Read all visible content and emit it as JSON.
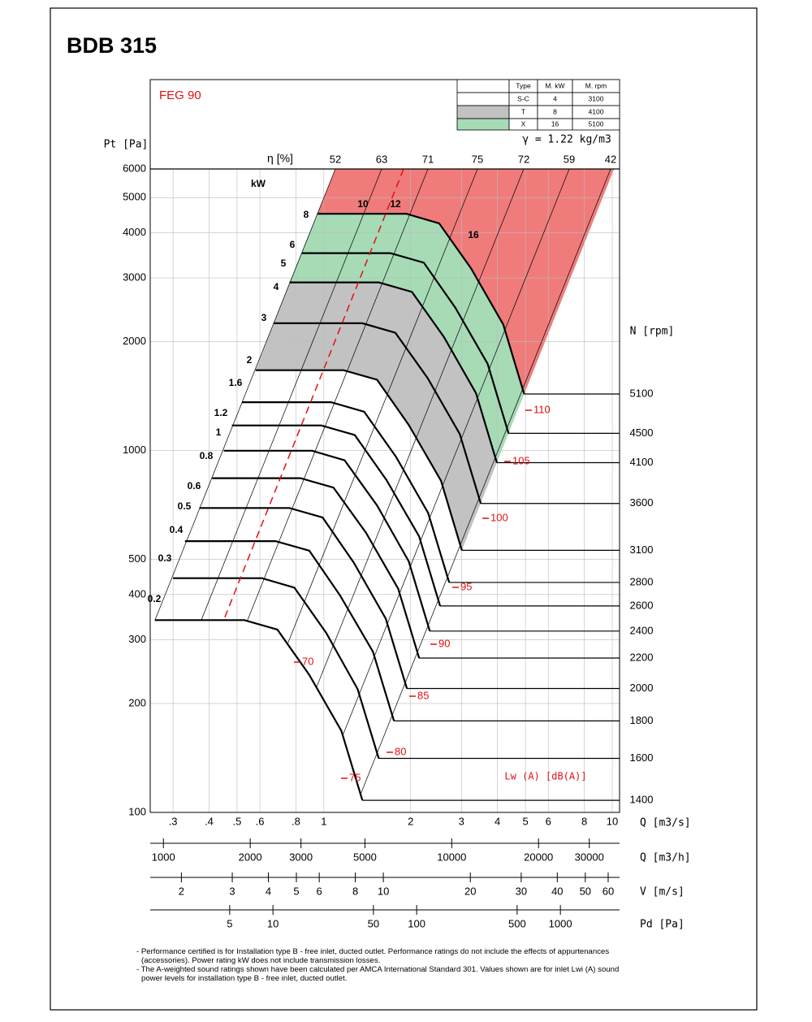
{
  "chart_data": {
    "type": "fan-curve",
    "title": "BDB 315",
    "subtitle": "FEG 90",
    "density": "γ = 1.22 kg/m3",
    "y_label": "Pt [Pa]",
    "log_y": true,
    "ylim": [
      100,
      6000
    ],
    "yticks": [
      100,
      200,
      300,
      400,
      500,
      1000,
      2000,
      3000,
      4000,
      5000,
      6000
    ],
    "x_label": "Q [m3/s]",
    "log_x": true,
    "xlim": [
      0.25,
      10.6
    ],
    "xticks": [
      {
        "value": 0.3,
        "label": ".3"
      },
      {
        "value": 0.4,
        "label": ".4"
      },
      {
        "value": 0.5,
        "label": ".5"
      },
      {
        "value": 0.6,
        "label": ".6"
      },
      {
        "value": 0.8,
        "label": ".8"
      },
      1,
      2,
      3,
      4,
      5,
      6,
      8,
      10
    ],
    "grid": true,
    "secondary_x_axes": [
      {
        "label": "Q [m3/h]",
        "xlim": [
          900,
          38200
        ],
        "xticks": [
          1000,
          2000,
          3000,
          5000,
          10000,
          20000,
          30000
        ]
      },
      {
        "label": "V [m/s]",
        "xlim": [
          1.56,
          65.7
        ],
        "xticks": [
          2,
          3,
          4,
          5,
          6,
          8,
          10,
          20,
          30,
          40,
          50,
          60
        ]
      },
      {
        "label": "Pd [Pa]",
        "xlim": [
          1.4,
          2580
        ],
        "xticks": [
          5,
          10,
          50,
          100,
          500,
          1000
        ]
      }
    ],
    "rpm_label": "N [rpm]",
    "series": [
      {
        "name": "1400",
        "color": "#000000",
        "x": [
          0.26,
          0.53,
          0.69,
          0.89,
          1.15,
          1.36
        ],
        "values": [
          340,
          340,
          320,
          240,
          168,
          108
        ]
      },
      {
        "name": "1600",
        "color": "#000000",
        "x": [
          0.3,
          0.61,
          0.79,
          1.02,
          1.31,
          1.55
        ],
        "values": [
          444,
          444,
          418,
          313,
          219,
          141
        ]
      },
      {
        "name": "1800",
        "color": "#000000",
        "x": [
          0.33,
          0.68,
          0.89,
          1.14,
          1.48,
          1.75
        ],
        "values": [
          562,
          562,
          529,
          397,
          278,
          179
        ]
      },
      {
        "name": "2000",
        "color": "#000000",
        "x": [
          0.37,
          0.76,
          0.99,
          1.27,
          1.64,
          1.94
        ],
        "values": [
          694,
          694,
          653,
          490,
          343,
          220
        ]
      },
      {
        "name": "2200",
        "color": "#000000",
        "x": [
          0.41,
          0.83,
          1.08,
          1.4,
          1.81,
          2.14
        ],
        "values": [
          839,
          839,
          790,
          593,
          415,
          267
        ]
      },
      {
        "name": "2400",
        "color": "#000000",
        "x": [
          0.45,
          0.91,
          1.18,
          1.53,
          1.97,
          2.33
        ],
        "values": [
          999,
          999,
          940,
          705,
          494,
          317
        ]
      },
      {
        "name": "2600",
        "color": "#000000",
        "x": [
          0.48,
          0.98,
          1.28,
          1.65,
          2.14,
          2.53
        ],
        "values": [
          1173,
          1173,
          1104,
          828,
          579,
          372
        ]
      },
      {
        "name": "2800",
        "color": "#000000",
        "x": [
          0.52,
          1.06,
          1.38,
          1.78,
          2.3,
          2.72
        ],
        "values": [
          1360,
          1360,
          1280,
          960,
          672,
          432
        ]
      },
      {
        "name": "3100",
        "color": "#000000",
        "x": [
          0.58,
          1.17,
          1.53,
          1.97,
          2.55,
          3.01
        ],
        "values": [
          1667,
          1667,
          1569,
          1177,
          824,
          530
        ]
      },
      {
        "name": "3600",
        "color": "#000000",
        "x": [
          0.67,
          1.36,
          1.77,
          2.29,
          2.96,
          3.5
        ],
        "values": [
          2248,
          2248,
          2116,
          1587,
          1111,
          714
        ]
      },
      {
        "name": "4100",
        "color": "#000000",
        "x": [
          0.76,
          1.55,
          2.02,
          2.61,
          3.37,
          3.98
        ],
        "values": [
          2916,
          2916,
          2745,
          2058,
          1441,
          926
        ]
      },
      {
        "name": "4500",
        "color": "#000000",
        "x": [
          0.84,
          1.7,
          2.22,
          2.86,
          3.7,
          4.37
        ],
        "values": [
          3512,
          3512,
          3306,
          2479,
          1735,
          1116
        ]
      },
      {
        "name": "5100",
        "color": "#000000",
        "x": [
          0.95,
          1.93,
          2.51,
          3.24,
          4.19,
          4.95
        ],
        "values": [
          4512,
          4512,
          4246,
          3185,
          2229,
          1433
        ]
      }
    ],
    "efficiency_label": "η [%]",
    "efficiency": [
      52,
      63,
      71,
      75,
      72,
      59,
      42
    ],
    "power_label": "kW",
    "power": [
      0.2,
      0.3,
      0.4,
      0.5,
      0.6,
      0.8,
      1,
      1.2,
      1.6,
      2,
      3,
      4,
      5,
      6,
      8,
      10,
      12,
      16
    ],
    "sound_label": "Lw (A)  [dB(A)]",
    "sound": [
      70,
      75,
      80,
      85,
      90,
      95,
      100,
      105,
      110
    ],
    "sound_color": "#e01010",
    "limit_color": "#f07b7b",
    "models": {
      "columns": [
        "Type",
        "M. kW",
        "M. rpm"
      ],
      "rows": [
        {
          "type": "S-C",
          "kw": 4,
          "rpm": 3100,
          "color": "#ffffff"
        },
        {
          "type": "T",
          "kw": 8,
          "rpm": 4100,
          "color": "#c2c2c2"
        },
        {
          "type": "X",
          "kw": 16,
          "rpm": 5100,
          "color": "#a6dbb6"
        }
      ]
    },
    "notes": [
      "- Performance certified is for Installation type B - free inlet, ducted outlet. Performance ratings do not include the effects of appurtenances (accessories). Power rating kW does not include transmission losses.",
      "- The A-weighted sound ratings shown have been calculated per AMCA International Standard 301. Values shown are for inlet Lwi (A) sound power levels for installation type B - free inlet, ducted outlet."
    ]
  }
}
